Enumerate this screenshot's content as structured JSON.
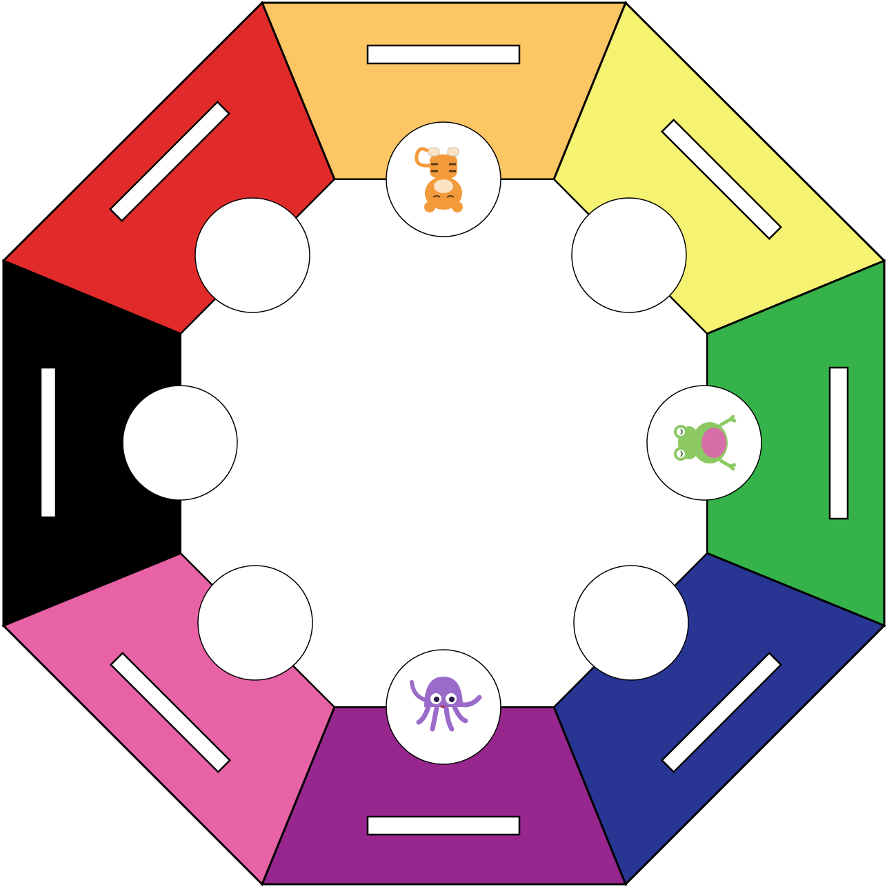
{
  "board": {
    "shape": "octagon",
    "segments": [
      {
        "name": "top",
        "color": "#FDC664"
      },
      {
        "name": "top-right",
        "color": "#F6F272"
      },
      {
        "name": "right",
        "color": "#35B34A"
      },
      {
        "name": "bottom-right",
        "color": "#283593"
      },
      {
        "name": "bottom",
        "color": "#97268E"
      },
      {
        "name": "bottom-left",
        "color": "#E862A6"
      },
      {
        "name": "left",
        "color": "#000000"
      },
      {
        "name": "top-left",
        "color": "#E12A2A"
      }
    ],
    "spots": [
      {
        "name": "top",
        "token": "tiger-icon"
      },
      {
        "name": "top-right",
        "token": "none"
      },
      {
        "name": "right",
        "token": "frog-icon"
      },
      {
        "name": "bottom-right",
        "token": "none"
      },
      {
        "name": "bottom",
        "token": "octopus-icon"
      },
      {
        "name": "bottom-left",
        "token": "none"
      },
      {
        "name": "left",
        "token": "none"
      },
      {
        "name": "top-left",
        "token": "none"
      }
    ],
    "colors": {
      "tiger": "#F39A3B",
      "frog": "#8CC963",
      "frog_belly": "#D66FA8",
      "octopus": "#9B6BC9"
    }
  }
}
